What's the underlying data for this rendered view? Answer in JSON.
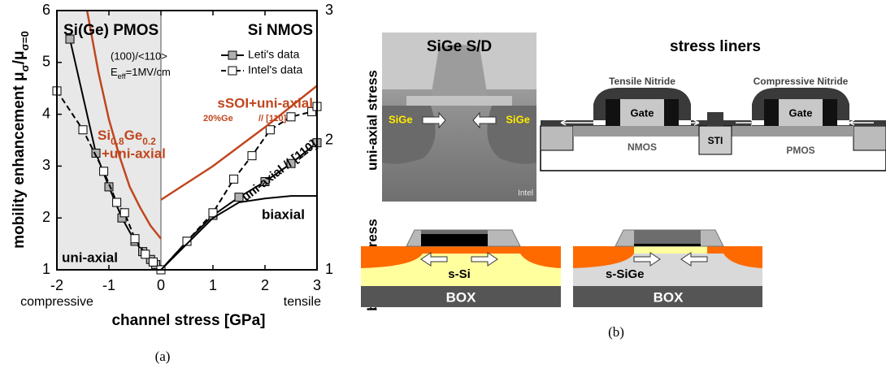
{
  "chart_data": {
    "type": "line",
    "ylabel": [
      {
        "text": "mobility enhancement μ"
      },
      {
        "text": "σ",
        "sub": true
      },
      {
        "text": "/μ"
      },
      {
        "text": "σ=0",
        "sub": true
      }
    ],
    "xlabel": "channel stress [GPa]",
    "xlim": [
      -2,
      3
    ],
    "xticks": [
      -2,
      -1,
      0,
      1,
      2,
      3
    ],
    "ylim": [
      1,
      6
    ],
    "yticks": [
      1,
      2,
      3,
      4,
      5,
      6
    ],
    "y2lim": [
      1,
      3
    ],
    "y2ticks": [
      1,
      2,
      3
    ],
    "legend": "upper right",
    "series": [
      {
        "x": [
          -1.75,
          -1.25,
          -1.0,
          -0.75,
          -0.5,
          -0.35,
          -0.2,
          -0.1,
          0
        ],
        "values": [
          5.45,
          3.25,
          2.6,
          2.0,
          1.55,
          1.35,
          1.2,
          1.1,
          1.0
        ],
        "color": "#000000",
        "style": "solid",
        "marker": "square",
        "marker_fill": "#b0b0b0"
      },
      {
        "x": [
          -2.0,
          -1.5,
          -1.1,
          -0.85,
          -0.7,
          -0.5,
          -0.3,
          -0.15,
          0
        ],
        "values": [
          4.45,
          3.7,
          2.9,
          2.3,
          2.1,
          1.6,
          1.3,
          1.15,
          1.0
        ],
        "color": "#000000",
        "style": "dashed",
        "marker": "square",
        "marker_fill": "#ffffff"
      },
      {
        "name": "Leti's data",
        "axis": "y2",
        "x": [
          0,
          0.5,
          1,
          1.5,
          2,
          2.5,
          3
        ],
        "values": [
          1.0,
          1.22,
          1.42,
          1.56,
          1.68,
          1.82,
          1.98
        ],
        "color": "#000000",
        "style": "solid",
        "marker": "square",
        "marker_fill": "#b0b0b0"
      },
      {
        "name": "Intel's data",
        "axis": "y2",
        "x": [
          0,
          0.5,
          1,
          1.4,
          1.75,
          2.1,
          2.5,
          2.9,
          3
        ],
        "values": [
          1.0,
          1.22,
          1.44,
          1.7,
          1.88,
          2.08,
          2.18,
          2.22,
          2.26
        ],
        "color": "#000000",
        "style": "dashed",
        "marker": "square",
        "marker_fill": "#ffffff"
      },
      {
        "axis": "y2",
        "x": [
          0,
          0.5,
          1,
          1.5,
          2,
          2.5,
          3
        ],
        "values": [
          1.0,
          1.2,
          1.4,
          1.52,
          1.55,
          1.57,
          1.57
        ],
        "color": "#000000",
        "style": "solid"
      },
      {
        "x": [
          -1.42,
          -1.2,
          -1.0,
          -0.8,
          -0.6,
          -0.4,
          -0.2,
          0
        ],
        "values": [
          6.0,
          4.8,
          3.9,
          3.2,
          2.6,
          2.2,
          1.85,
          1.6
        ],
        "color": "#c0461e",
        "style": "solid"
      },
      {
        "axis": "y2",
        "x": [
          0,
          1,
          2,
          3
        ],
        "values": [
          1.54,
          1.8,
          2.1,
          2.42
        ],
        "color": "#c0461e",
        "style": "solid"
      }
    ],
    "annotations": {
      "pmos": "Si(Ge) PMOS",
      "nmos": "Si NMOS",
      "orient": "(100)/<110>",
      "eeff": [
        {
          "text": "E"
        },
        {
          "text": "eff",
          "sub": true
        },
        {
          "text": "=1MV/cm"
        }
      ],
      "ssoi": "sSOI+uni-axial",
      "ge20": "20%Ge",
      "dir110": "// [110]",
      "sige": [
        {
          "text": "Si"
        },
        {
          "text": "0.8",
          "sub": true
        },
        {
          "text": "Ge"
        },
        {
          "text": "0.2",
          "sub": true
        }
      ],
      "sige2": "+uni-axial",
      "uninmos": "uni-axial // [110]",
      "biaxial": "biaxial",
      "unipmos": "uni-axial",
      "compressive": "compressive",
      "tensile": "tensile"
    },
    "caption": "(a)"
  },
  "diagram": {
    "rows": {
      "uniaxial": "uni-axial stress",
      "biaxial": "bi-axial stress"
    },
    "tem": {
      "title": "SiGe S/D",
      "left": "SiGe",
      "right": "SiGe",
      "credit": "Intel"
    },
    "liners": {
      "title": "stress liners",
      "tensile": "Tensile Nitride",
      "compressive": "Compressive Nitride",
      "gate_left": "Gate",
      "gate_right": "Gate",
      "nmos": "NMOS",
      "sti": "STI",
      "pmos": "PMOS"
    },
    "biaxial_left": {
      "channel": "s-Si",
      "box": "BOX"
    },
    "biaxial_right": {
      "channel": "s-SiGe",
      "box": "BOX"
    },
    "caption": "(b)"
  }
}
